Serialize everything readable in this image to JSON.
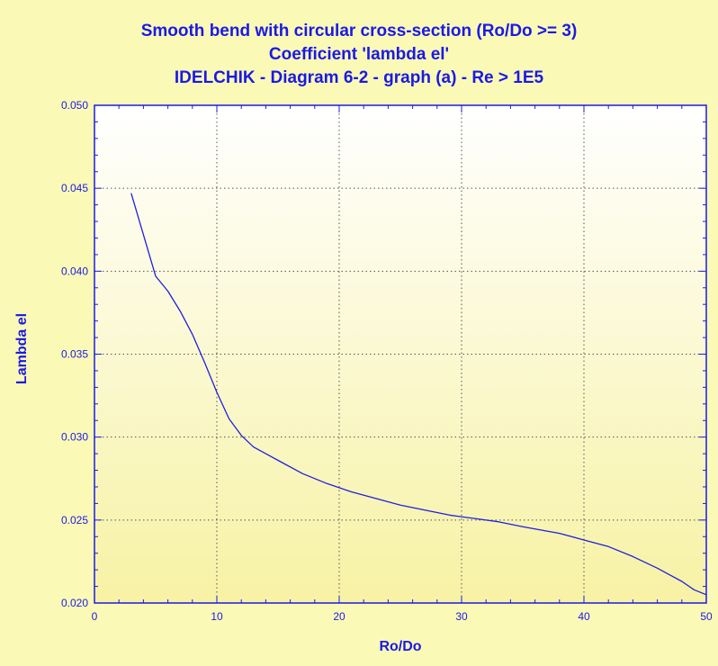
{
  "colors": {
    "background": "#fbf9b6",
    "plot_top": "#ffffff",
    "plot_bottom": "#f7f2a4",
    "text": "#1a1ae6",
    "line": "#1f1fe0",
    "grid": "#555555",
    "axis": "#1a1ae6"
  },
  "chart_data": {
    "type": "line",
    "title": "Smooth bend with circular cross-section (Ro/Do >= 3)",
    "subtitle": "Coefficient 'lambda el'",
    "subtitle2": "IDELCHIK - Diagram 6-2 - graph (a) - Re > 1E5",
    "xlabel": "Ro/Do",
    "ylabel": "Lambda el",
    "xlim": [
      0,
      50
    ],
    "ylim": [
      0.02,
      0.05
    ],
    "xticks": [
      "0",
      "10",
      "20",
      "30",
      "40",
      "50"
    ],
    "yticks": [
      "0.020",
      "0.025",
      "0.030",
      "0.035",
      "0.040",
      "0.045",
      "0.050"
    ],
    "grid": true,
    "series": [
      {
        "x": [
          3,
          5,
          6,
          7,
          8,
          9,
          10,
          11,
          12,
          13,
          14,
          15,
          17,
          19,
          21,
          23,
          25,
          27,
          29,
          31,
          33,
          35,
          38,
          40,
          42,
          44,
          46,
          47,
          48,
          49,
          50
        ],
        "values": [
          0.0447,
          0.0397,
          0.0388,
          0.0376,
          0.0362,
          0.0345,
          0.0327,
          0.0311,
          0.0301,
          0.0294,
          0.029,
          0.0286,
          0.0278,
          0.0272,
          0.0267,
          0.0263,
          0.0259,
          0.0256,
          0.0253,
          0.0251,
          0.0249,
          0.0246,
          0.0242,
          0.0238,
          0.0234,
          0.0228,
          0.0221,
          0.0217,
          0.0213,
          0.0208,
          0.0205
        ]
      }
    ]
  }
}
